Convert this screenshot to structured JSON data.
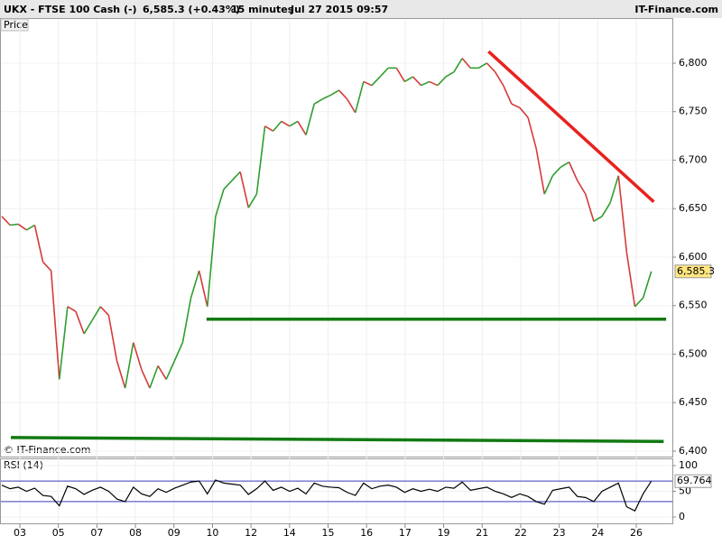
{
  "header": {
    "symbol": "UKX - FTSE 100 Cash (-)",
    "quote": "6,585.3 (+0.43%)",
    "interval": "15 minutes",
    "timestamp": "Jul 27 2015 09:57",
    "brand": "IT-Finance.com"
  },
  "x_axis": {
    "labels": [
      "03",
      "05",
      "07",
      "08",
      "09",
      "10",
      "12",
      "14",
      "15",
      "16",
      "17",
      "19",
      "21",
      "22",
      "23",
      "24",
      "26"
    ]
  },
  "chart_data": [
    {
      "type": "line",
      "title": "Price",
      "copyright": "© IT-Finance.com",
      "up_color": "#2e9e2e",
      "down_color": "#d63a3a",
      "values": [
        6642,
        6633,
        6634,
        6628,
        6633,
        6595,
        6586,
        6474,
        6549,
        6544,
        6521,
        6535,
        6549,
        6540,
        6493,
        6465,
        6512,
        6484,
        6465,
        6488,
        6474,
        6493,
        6512,
        6558,
        6586,
        6549,
        6642,
        6670,
        6679,
        6688,
        6651,
        6665,
        6735,
        6730,
        6740,
        6735,
        6740,
        6726,
        6758,
        6763,
        6767,
        6772,
        6763,
        6749,
        6781,
        6777,
        6786,
        6795,
        6795,
        6781,
        6786,
        6777,
        6781,
        6777,
        6786,
        6791,
        6805,
        6795,
        6795,
        6800,
        6791,
        6777,
        6758,
        6754,
        6744,
        6712,
        6665,
        6684,
        6693,
        6698,
        6679,
        6665,
        6637,
        6642,
        6656,
        6684,
        6605,
        6549,
        6558,
        6585.3
      ],
      "last_label": "6,585.3",
      "ylim": [
        6394.4,
        6846.5
      ],
      "yticks": [
        {
          "value": 6400,
          "label": "6,400"
        },
        {
          "value": 6450,
          "label": "6,450"
        },
        {
          "value": 6500,
          "label": "6,500"
        },
        {
          "value": 6550,
          "label": "6,550"
        },
        {
          "value": 6600,
          "label": "6,600"
        },
        {
          "value": 6650,
          "label": "6,650"
        },
        {
          "value": 6700,
          "label": "6,700"
        },
        {
          "value": 6750,
          "label": "6,750"
        },
        {
          "value": 6800,
          "label": "6,800"
        }
      ],
      "trendlines": [
        {
          "color": "#e8221e",
          "start": [
            59.2,
            6812
          ],
          "end": [
            79.3,
            6657
          ]
        },
        {
          "color": "#127a12",
          "start": [
            24.9,
            6536
          ],
          "end": [
            80.8,
            6536
          ]
        },
        {
          "color": "#127a12",
          "start": [
            1.1,
            6414
          ],
          "end": [
            80.5,
            6410
          ]
        }
      ]
    },
    {
      "type": "line",
      "title": "RSI (14)",
      "color": "#000000",
      "values": [
        62,
        55,
        58,
        50,
        56,
        42,
        40,
        22,
        60,
        55,
        44,
        52,
        58,
        50,
        35,
        30,
        58,
        45,
        40,
        55,
        48,
        56,
        62,
        68,
        70,
        45,
        72,
        66,
        64,
        62,
        44,
        55,
        70,
        52,
        58,
        50,
        56,
        45,
        66,
        60,
        58,
        57,
        48,
        42,
        66,
        55,
        60,
        62,
        58,
        48,
        55,
        50,
        54,
        50,
        58,
        56,
        68,
        52,
        55,
        58,
        50,
        45,
        38,
        45,
        40,
        30,
        25,
        52,
        55,
        58,
        40,
        38,
        30,
        50,
        58,
        66,
        20,
        12,
        45,
        69.764
      ],
      "last_label": "69.764",
      "bands": [
        30,
        70
      ],
      "ylim": [
        -14,
        114
      ],
      "yticks": [
        0,
        50,
        100
      ]
    }
  ]
}
